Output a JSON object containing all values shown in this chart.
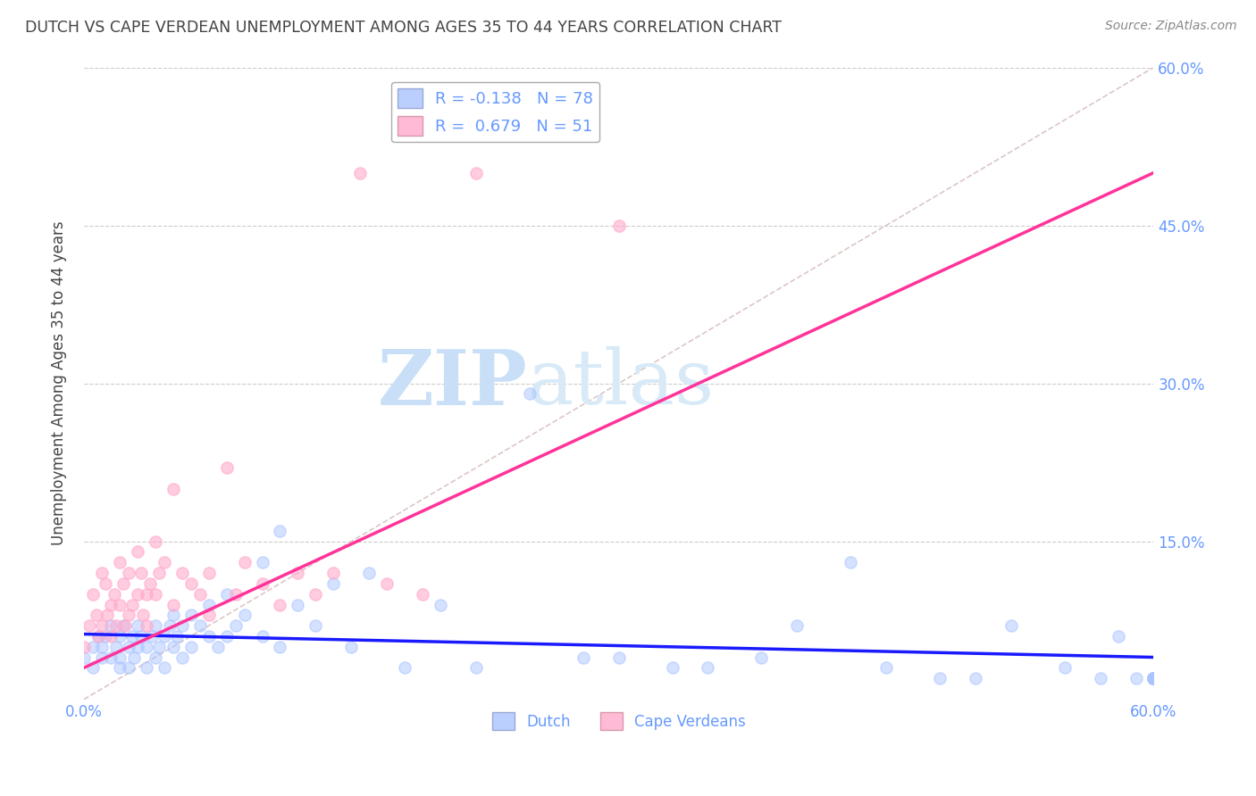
{
  "title": "DUTCH VS CAPE VERDEAN UNEMPLOYMENT AMONG AGES 35 TO 44 YEARS CORRELATION CHART",
  "source": "Source: ZipAtlas.com",
  "ylabel": "Unemployment Among Ages 35 to 44 years",
  "xlim": [
    0.0,
    0.6
  ],
  "ylim": [
    0.0,
    0.6
  ],
  "dutch_color": "#aac4ff",
  "cape_verdean_color": "#ffaacc",
  "dutch_R": -0.138,
  "dutch_N": 78,
  "cape_verdean_R": 0.679,
  "cape_verdean_N": 51,
  "dutch_scatter_x": [
    0.0,
    0.005,
    0.005,
    0.008,
    0.01,
    0.01,
    0.012,
    0.015,
    0.015,
    0.018,
    0.02,
    0.02,
    0.02,
    0.022,
    0.025,
    0.025,
    0.027,
    0.028,
    0.03,
    0.03,
    0.032,
    0.035,
    0.035,
    0.038,
    0.04,
    0.04,
    0.042,
    0.045,
    0.045,
    0.048,
    0.05,
    0.05,
    0.052,
    0.055,
    0.055,
    0.06,
    0.06,
    0.065,
    0.07,
    0.07,
    0.075,
    0.08,
    0.08,
    0.085,
    0.09,
    0.1,
    0.1,
    0.11,
    0.11,
    0.12,
    0.13,
    0.14,
    0.15,
    0.16,
    0.18,
    0.2,
    0.22,
    0.25,
    0.28,
    0.3,
    0.33,
    0.35,
    0.38,
    0.4,
    0.43,
    0.45,
    0.48,
    0.5,
    0.52,
    0.55,
    0.57,
    0.58,
    0.59,
    0.6,
    0.6,
    0.6,
    0.6,
    0.6
  ],
  "dutch_scatter_y": [
    0.04,
    0.05,
    0.03,
    0.06,
    0.05,
    0.04,
    0.06,
    0.07,
    0.04,
    0.05,
    0.06,
    0.04,
    0.03,
    0.07,
    0.05,
    0.03,
    0.06,
    0.04,
    0.07,
    0.05,
    0.06,
    0.05,
    0.03,
    0.06,
    0.07,
    0.04,
    0.05,
    0.06,
    0.03,
    0.07,
    0.08,
    0.05,
    0.06,
    0.07,
    0.04,
    0.08,
    0.05,
    0.07,
    0.09,
    0.06,
    0.05,
    0.1,
    0.06,
    0.07,
    0.08,
    0.13,
    0.06,
    0.16,
    0.05,
    0.09,
    0.07,
    0.11,
    0.05,
    0.12,
    0.03,
    0.09,
    0.03,
    0.29,
    0.04,
    0.04,
    0.03,
    0.03,
    0.04,
    0.07,
    0.13,
    0.03,
    0.02,
    0.02,
    0.07,
    0.03,
    0.02,
    0.06,
    0.02,
    0.02,
    0.02,
    0.02,
    0.02,
    0.02
  ],
  "cape_verdean_scatter_x": [
    0.0,
    0.003,
    0.005,
    0.007,
    0.008,
    0.01,
    0.01,
    0.012,
    0.013,
    0.015,
    0.015,
    0.017,
    0.018,
    0.02,
    0.02,
    0.022,
    0.023,
    0.025,
    0.025,
    0.027,
    0.03,
    0.03,
    0.032,
    0.033,
    0.035,
    0.035,
    0.037,
    0.04,
    0.04,
    0.042,
    0.045,
    0.05,
    0.05,
    0.055,
    0.06,
    0.065,
    0.07,
    0.07,
    0.08,
    0.085,
    0.09,
    0.1,
    0.11,
    0.12,
    0.13,
    0.14,
    0.155,
    0.17,
    0.19,
    0.22,
    0.3
  ],
  "cape_verdean_scatter_y": [
    0.05,
    0.07,
    0.1,
    0.08,
    0.06,
    0.12,
    0.07,
    0.11,
    0.08,
    0.09,
    0.06,
    0.1,
    0.07,
    0.13,
    0.09,
    0.11,
    0.07,
    0.12,
    0.08,
    0.09,
    0.14,
    0.1,
    0.12,
    0.08,
    0.1,
    0.07,
    0.11,
    0.15,
    0.1,
    0.12,
    0.13,
    0.2,
    0.09,
    0.12,
    0.11,
    0.1,
    0.12,
    0.08,
    0.22,
    0.1,
    0.13,
    0.11,
    0.09,
    0.12,
    0.1,
    0.12,
    0.5,
    0.11,
    0.1,
    0.5,
    0.45
  ],
  "diagonal_line_x": [
    0.0,
    0.6
  ],
  "diagonal_line_y": [
    0.0,
    0.6
  ],
  "background_color": "#ffffff",
  "watermark_zip": "ZIP",
  "watermark_atlas": "atlas",
  "watermark_color": "#ddeeff",
  "grid_color": "#cccccc",
  "title_color": "#444444",
  "axis_label_color": "#444444",
  "tick_color": "#6699ff",
  "dutch_line_color": "#1a1aff",
  "cape_verdean_line_color": "#ff3399",
  "diagonal_color": "#d4b8b8",
  "ytick_right_values": [
    0.15,
    0.3,
    0.45,
    0.6
  ],
  "ytick_right_labels": [
    "15.0%",
    "30.0%",
    "45.0%",
    "60.0%"
  ],
  "xtick_values": [
    0.0,
    0.6
  ],
  "xtick_labels": [
    "0.0%",
    "60.0%"
  ]
}
